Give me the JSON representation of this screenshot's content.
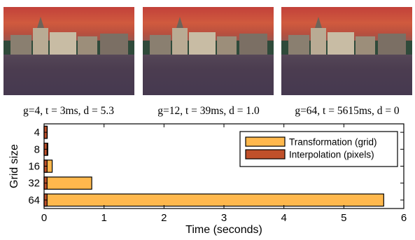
{
  "panels": [
    {
      "caption": "g=4, t = 3ms, d = 5.3"
    },
    {
      "caption": "g=12, t = 39ms, d = 1.0"
    },
    {
      "caption": "g=64, t = 5615ms, d = 0"
    }
  ],
  "colors": {
    "transformation": "#ffb84d",
    "interpolation": "#c0502a",
    "axis": "#000000"
  },
  "chart_data": {
    "type": "bar",
    "orientation": "horizontal",
    "stacked": true,
    "categories": [
      "4",
      "8",
      "16",
      "32",
      "64"
    ],
    "series": [
      {
        "name": "Transformation (grid)",
        "values": [
          0.003,
          0.012,
          0.085,
          0.745,
          5.615
        ]
      },
      {
        "name": "Interpolation (pixels)",
        "values": [
          0.05,
          0.05,
          0.05,
          0.05,
          0.05
        ]
      }
    ],
    "xlabel": "Time (seconds)",
    "ylabel": "Grid size",
    "xlim": [
      0,
      6
    ],
    "xticks": [
      "0",
      "1",
      "2",
      "3",
      "4",
      "5",
      "6"
    ],
    "legend_position": "top-right",
    "grid": false
  }
}
